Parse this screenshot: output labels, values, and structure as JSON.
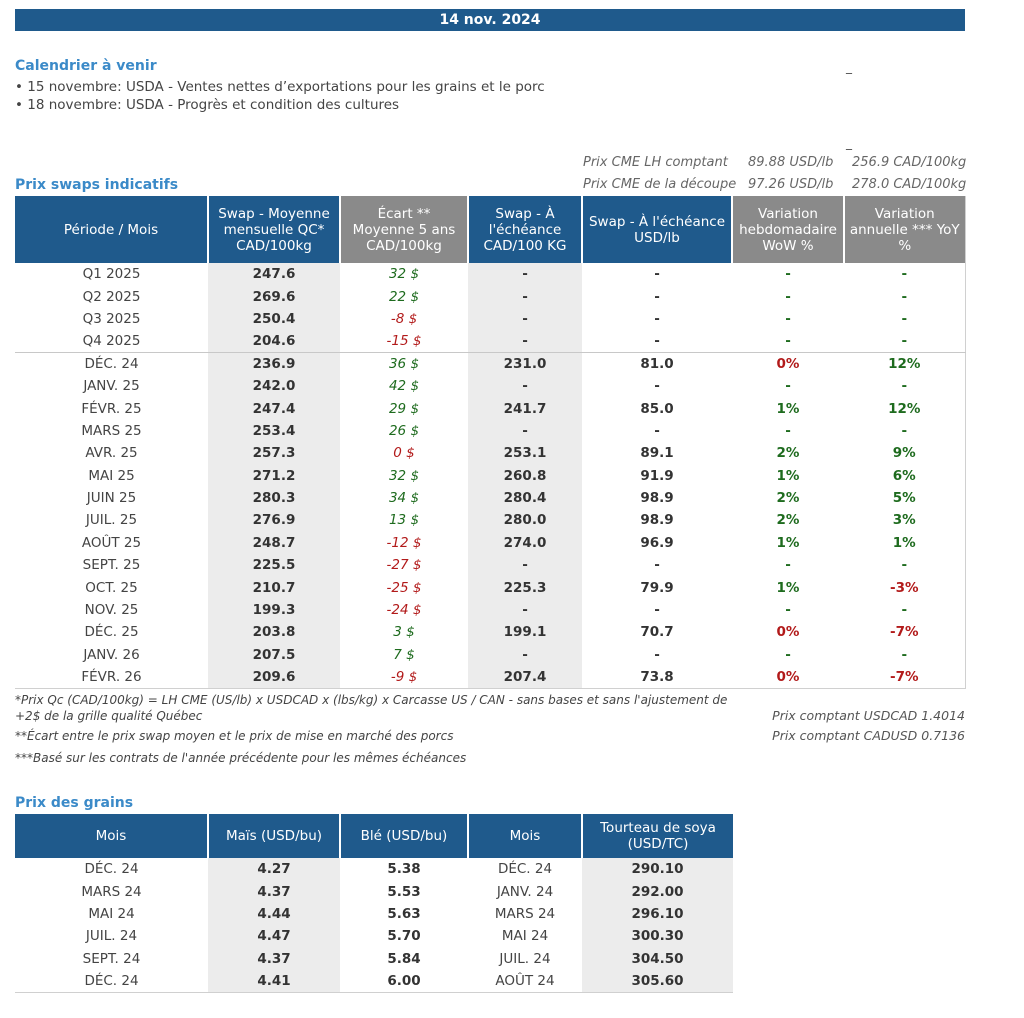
{
  "header": {
    "date": "14 nov. 2024"
  },
  "calendar": {
    "title": "Calendrier à venir",
    "items": [
      "• 15 novembre: USDA - Ventes nettes d’exportations pour les grains et le porc",
      "• 18 novembre: USDA - Progrès et condition des cultures"
    ]
  },
  "cme": [
    {
      "label": "Prix CME LH comptant",
      "usd": "89.88 USD/lb",
      "cad": "256.9 CAD/100kg"
    },
    {
      "label": "Prix CME de la découpe",
      "usd": "97.26 USD/lb",
      "cad": "278.0 CAD/100kg"
    }
  ],
  "swaps": {
    "title": "Prix swaps indicatifs",
    "headers": [
      "Période / Mois",
      "Swap - Moyenne mensuelle QC* CAD/100kg",
      "Écart ** Moyenne 5 ans CAD/100kg",
      "Swap - À l'échéance CAD/100 KG",
      "Swap - À l'échéance USD/lb",
      "Variation hebdomadaire WoW %",
      "Variation annuelle *** YoY %"
    ],
    "quarters": [
      {
        "period": "Q1 2025",
        "moy": "247.6",
        "ecart": "32 $",
        "sign": "pos",
        "cad": "-",
        "usd": "-",
        "wow": "-",
        "wows": "pos",
        "yoy": "-",
        "yoys": "pos"
      },
      {
        "period": "Q2 2025",
        "moy": "269.6",
        "ecart": "22 $",
        "sign": "pos",
        "cad": "-",
        "usd": "-",
        "wow": "-",
        "wows": "pos",
        "yoy": "-",
        "yoys": "pos"
      },
      {
        "period": "Q3 2025",
        "moy": "250.4",
        "ecart": "-8 $",
        "sign": "neg",
        "cad": "-",
        "usd": "-",
        "wow": "-",
        "wows": "pos",
        "yoy": "-",
        "yoys": "pos"
      },
      {
        "period": "Q4 2025",
        "moy": "204.6",
        "ecart": "-15 $",
        "sign": "neg",
        "cad": "-",
        "usd": "-",
        "wow": "-",
        "wows": "pos",
        "yoy": "-",
        "yoys": "pos"
      }
    ],
    "months": [
      {
        "period": "DÉC. 24",
        "moy": "236.9",
        "ecart": "36 $",
        "sign": "pos",
        "cad": "231.0",
        "usd": "81.0",
        "wow": "0%",
        "wows": "neg",
        "yoy": "12%",
        "yoys": "pos"
      },
      {
        "period": "JANV. 25",
        "moy": "242.0",
        "ecart": "42 $",
        "sign": "pos",
        "cad": "-",
        "usd": "-",
        "wow": "-",
        "wows": "pos",
        "yoy": "-",
        "yoys": "pos"
      },
      {
        "period": "FÉVR. 25",
        "moy": "247.4",
        "ecart": "29 $",
        "sign": "pos",
        "cad": "241.7",
        "usd": "85.0",
        "wow": "1%",
        "wows": "pos",
        "yoy": "12%",
        "yoys": "pos"
      },
      {
        "period": "MARS 25",
        "moy": "253.4",
        "ecart": "26 $",
        "sign": "pos",
        "cad": "-",
        "usd": "-",
        "wow": "-",
        "wows": "pos",
        "yoy": "-",
        "yoys": "pos"
      },
      {
        "period": "AVR. 25",
        "moy": "257.3",
        "ecart": "0 $",
        "sign": "neg",
        "cad": "253.1",
        "usd": "89.1",
        "wow": "2%",
        "wows": "pos",
        "yoy": "9%",
        "yoys": "pos"
      },
      {
        "period": "MAI 25",
        "moy": "271.2",
        "ecart": "32 $",
        "sign": "pos",
        "cad": "260.8",
        "usd": "91.9",
        "wow": "1%",
        "wows": "pos",
        "yoy": "6%",
        "yoys": "pos"
      },
      {
        "period": "JUIN 25",
        "moy": "280.3",
        "ecart": "34 $",
        "sign": "pos",
        "cad": "280.4",
        "usd": "98.9",
        "wow": "2%",
        "wows": "pos",
        "yoy": "5%",
        "yoys": "pos"
      },
      {
        "period": "JUIL. 25",
        "moy": "276.9",
        "ecart": "13 $",
        "sign": "pos",
        "cad": "280.0",
        "usd": "98.9",
        "wow": "2%",
        "wows": "pos",
        "yoy": "3%",
        "yoys": "pos"
      },
      {
        "period": "AOÛT 25",
        "moy": "248.7",
        "ecart": "-12 $",
        "sign": "neg",
        "cad": "274.0",
        "usd": "96.9",
        "wow": "1%",
        "wows": "pos",
        "yoy": "1%",
        "yoys": "pos"
      },
      {
        "period": "SEPT. 25",
        "moy": "225.5",
        "ecart": "-27 $",
        "sign": "neg",
        "cad": "-",
        "usd": "-",
        "wow": "-",
        "wows": "pos",
        "yoy": "-",
        "yoys": "pos"
      },
      {
        "period": "OCT. 25",
        "moy": "210.7",
        "ecart": "-25 $",
        "sign": "neg",
        "cad": "225.3",
        "usd": "79.9",
        "wow": "1%",
        "wows": "pos",
        "yoy": "-3%",
        "yoys": "neg"
      },
      {
        "period": "NOV. 25",
        "moy": "199.3",
        "ecart": "-24 $",
        "sign": "neg",
        "cad": "-",
        "usd": "-",
        "wow": "-",
        "wows": "pos",
        "yoy": "-",
        "yoys": "pos"
      },
      {
        "period": "DÉC. 25",
        "moy": "203.8",
        "ecart": "3 $",
        "sign": "pos",
        "cad": "199.1",
        "usd": "70.7",
        "wow": "0%",
        "wows": "neg",
        "yoy": "-7%",
        "yoys": "neg"
      },
      {
        "period": "JANV. 26",
        "moy": "207.5",
        "ecart": "7 $",
        "sign": "pos",
        "cad": "-",
        "usd": "-",
        "wow": "-",
        "wows": "pos",
        "yoy": "-",
        "yoys": "pos"
      },
      {
        "period": "FÉVR. 26",
        "moy": "209.6",
        "ecart": "-9 $",
        "sign": "neg",
        "cad": "207.4",
        "usd": "73.8",
        "wow": "0%",
        "wows": "neg",
        "yoy": "-7%",
        "yoys": "neg"
      }
    ]
  },
  "footnotes": {
    "note1": "*Prix Qc (CAD/100kg) = LH CME (US/lb) x USDCAD x (lbs/kg) x Carcasse US / CAN - sans bases et sans l'ajustement de +2$ de la grille qualité Québec",
    "note2": "**Écart entre le prix swap moyen et le prix de mise en marché des porcs",
    "note3": "***Basé sur les contrats de l'année précédente pour les mêmes échéances",
    "usdcad": "Prix comptant USDCAD 1.4014",
    "cadusd": "Prix comptant CADUSD 0.7136"
  },
  "grains": {
    "title": "Prix des grains",
    "headers": [
      "Mois",
      "Maïs (USD/bu)",
      "Blé (USD/bu)",
      "Mois",
      "Tourteau de soya (USD/TC)"
    ],
    "rows": [
      {
        "m1": "DÉC. 24",
        "mais": "4.27",
        "ble": "5.38",
        "m2": "DÉC. 24",
        "soya": "290.10"
      },
      {
        "m1": "MARS 24",
        "mais": "4.37",
        "ble": "5.53",
        "m2": "JANV. 24",
        "soya": "292.00"
      },
      {
        "m1": "MAI 24",
        "mais": "4.44",
        "ble": "5.63",
        "m2": "MARS 24",
        "soya": "296.10"
      },
      {
        "m1": "JUIL. 24",
        "mais": "4.47",
        "ble": "5.70",
        "m2": "MAI 24",
        "soya": "300.30"
      },
      {
        "m1": "SEPT. 24",
        "mais": "4.37",
        "ble": "5.84",
        "m2": "JUIL. 24",
        "soya": "304.50"
      },
      {
        "m1": "DÉC. 24",
        "mais": "4.41",
        "ble": "6.00",
        "m2": "AOÛT 24",
        "soya": "305.60"
      }
    ]
  }
}
